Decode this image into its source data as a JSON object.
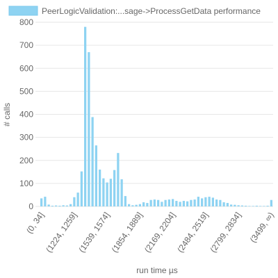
{
  "chart_data": {
    "type": "bar",
    "xlabel": "run time µs",
    "ylabel": "# calls",
    "ylim": [
      0,
      800
    ],
    "yticks": [
      0,
      100,
      200,
      300,
      400,
      500,
      600,
      700,
      800
    ],
    "grid": true,
    "legend_placement": "top",
    "colors": {
      "bar_fill": "#8ED3F2",
      "bar_border": "#7CC8EC",
      "grid": "#e6e6e6",
      "text": "#666666"
    },
    "series": [
      {
        "name": "PeerLogicValidation:...sage->ProcessGetData performance",
        "values": [
          35,
          42,
          8,
          3,
          4,
          3,
          5,
          4,
          10,
          40,
          60,
          152,
          780,
          670,
          388,
          265,
          160,
          122,
          104,
          120,
          158,
          232,
          118,
          45,
          10,
          5,
          7,
          10,
          18,
          15,
          28,
          30,
          28,
          20,
          28,
          30,
          32,
          24,
          20,
          24,
          22,
          28,
          30,
          42,
          35,
          40,
          42,
          38,
          30,
          28,
          18,
          15,
          8,
          7,
          5,
          4,
          3,
          2,
          2,
          3,
          2,
          2,
          3,
          28
        ]
      }
    ],
    "tick_labels": [
      {
        "index": 0,
        "label": "(0, 34]"
      },
      {
        "index": 9,
        "label": "(1224, 1259]"
      },
      {
        "index": 18,
        "label": "(1539, 1574]"
      },
      {
        "index": 27,
        "label": "(1854, 1889]"
      },
      {
        "index": 36,
        "label": "(2169, 2204]"
      },
      {
        "index": 45,
        "label": "(2484, 2519]"
      },
      {
        "index": 54,
        "label": "(2799, 2834]"
      },
      {
        "index": 63,
        "label": "(3499, ∞)"
      }
    ]
  }
}
